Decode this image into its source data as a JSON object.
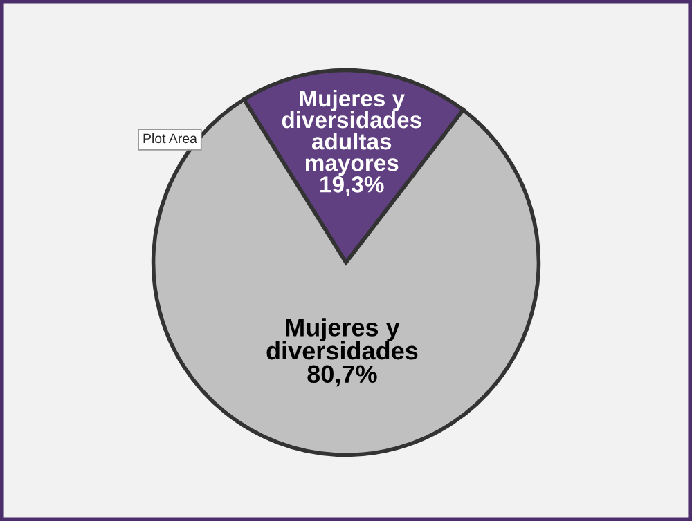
{
  "chart_data": {
    "type": "pie",
    "categories": [
      "Mujeres y diversidades adultas mayores",
      "Mujeres y diversidades"
    ],
    "values": [
      19.3,
      80.7
    ],
    "colors": [
      "#604080",
      "#c0c0c0"
    ],
    "value_labels": [
      "19,3%",
      "80,7%"
    ],
    "annotations": [
      "Plot Area"
    ],
    "legend": false
  }
}
